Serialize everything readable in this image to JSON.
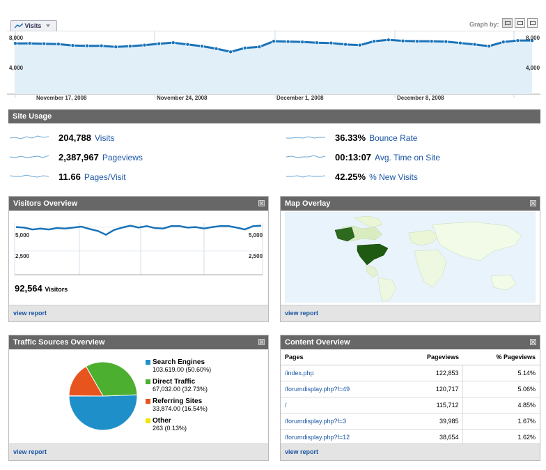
{
  "top_graph": {
    "tab_label": "Visits",
    "graph_by_label": "Graph by:",
    "y_ticks": [
      "8,000",
      "4,000"
    ],
    "dates": [
      "November 17, 2008",
      "November 24, 2008",
      "December 1, 2008",
      "December 8, 2008"
    ]
  },
  "chart_data": [
    {
      "type": "line",
      "title": "",
      "series": [
        {
          "values": [
            7200,
            7200,
            7150,
            7100,
            6900,
            6850,
            6850,
            6700,
            6800,
            6950,
            7150,
            7300,
            7050,
            6800,
            6450,
            6000,
            6550,
            6700,
            7500,
            7450,
            7400,
            7300,
            7250,
            7050,
            6950,
            7500,
            7700,
            7550,
            7500,
            7500,
            7450,
            7250,
            7050,
            6800,
            7400,
            7600,
            7600
          ]
        }
      ],
      "ylim": [
        0,
        9000
      ],
      "y_ticks": [
        8000,
        4000
      ]
    },
    {
      "type": "line",
      "title": "",
      "series": [
        {
          "values": [
            5000,
            4950,
            4750,
            4850,
            4750,
            4900,
            4850,
            4950,
            5050,
            4800,
            4600,
            4200,
            4700,
            4950,
            5150,
            4950,
            5100,
            4900,
            4850,
            5100,
            5100,
            4950,
            5000,
            4850,
            5000,
            5100,
            5100,
            4950,
            4750,
            5100,
            5150
          ]
        }
      ],
      "ylim": [
        0,
        6000
      ],
      "y_ticks": [
        5000,
        2500
      ]
    },
    {
      "type": "pie",
      "title": "",
      "categories": [
        "Search Engines",
        "Direct Traffic",
        "Referring Sites",
        "Other"
      ],
      "values": [
        50.6,
        32.73,
        16.54,
        0.13
      ]
    }
  ],
  "site_usage": {
    "title": "Site Usage",
    "metrics": [
      {
        "value": "204,788",
        "label": "Visits"
      },
      {
        "value": "2,387,967",
        "label": "Pageviews"
      },
      {
        "value": "11.66",
        "label": "Pages/Visit"
      },
      {
        "value": "36.33%",
        "label": "Bounce Rate"
      },
      {
        "value": "00:13:07",
        "label": "Avg. Time on Site"
      },
      {
        "value": "42.25%",
        "label": "% New Visits"
      }
    ]
  },
  "visitors_overview": {
    "title": "Visitors Overview",
    "y_ticks": [
      "5,000",
      "2,500"
    ],
    "visitors_value": "92,564",
    "visitors_label": "Visitors",
    "footer": "view report"
  },
  "map_overlay": {
    "title": "Map Overlay",
    "footer": "view report"
  },
  "traffic_sources": {
    "title": "Traffic Sources Overview",
    "footer": "view report",
    "items": [
      {
        "name": "Search Engines",
        "detail": "103,619.00 (50.60%)",
        "color": "#1e8fc8"
      },
      {
        "name": "Direct Traffic",
        "detail": "67,032.00 (32.73%)",
        "color": "#4caf2f"
      },
      {
        "name": "Referring Sites",
        "detail": "33,874.00 (16.54%)",
        "color": "#e8541e"
      },
      {
        "name": "Other",
        "detail": "263 (0.13%)",
        "color": "#f2e600"
      }
    ]
  },
  "content_overview": {
    "title": "Content Overview",
    "footer": "view report",
    "headers": [
      "Pages",
      "Pageviews",
      "% Pageviews"
    ],
    "rows": [
      [
        "/index.php",
        "122,853",
        "5.14%"
      ],
      [
        "/forumdisplay.php?f=49",
        "120,717",
        "5.06%"
      ],
      [
        "/",
        "115,712",
        "4.85%"
      ],
      [
        "/forumdisplay.php?f=3",
        "39,985",
        "1.67%"
      ],
      [
        "/forumdisplay.php?f=12",
        "38,654",
        "1.62%"
      ]
    ]
  },
  "colors": {
    "line": "#1a73b8",
    "area": "#e1eff9",
    "header": "#676767",
    "link": "#1a55a3"
  }
}
